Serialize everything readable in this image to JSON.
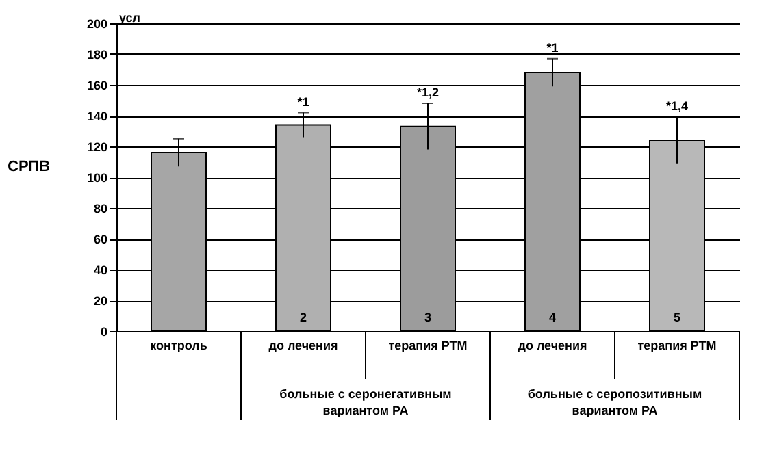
{
  "chart_data": {
    "type": "bar",
    "ylabel": "СРПВ",
    "categories": [
      "контроль",
      "до лечения",
      "терапия РТМ",
      "до лечения",
      "терапия РТМ"
    ],
    "values": [
      116,
      134,
      133,
      168,
      124
    ],
    "errors": [
      9,
      8,
      15,
      9,
      15
    ],
    "colors": [
      "#a6a6a6",
      "#b0b0b0",
      "#9c9c9c",
      "#a0a0a0",
      "#b8b8b8"
    ],
    "ylim": [
      0,
      200
    ],
    "yticks": [
      0,
      20,
      40,
      60,
      80,
      100,
      120,
      140,
      160,
      180,
      200
    ],
    "grid": "y",
    "annotations": [
      "усл",
      "больные с серонегативным вариантом РА",
      "больные с серопозитивным вариантом РА",
      "*1",
      "*1,2",
      "*1",
      "*1,4",
      "2",
      "3",
      "4",
      "5"
    ]
  }
}
